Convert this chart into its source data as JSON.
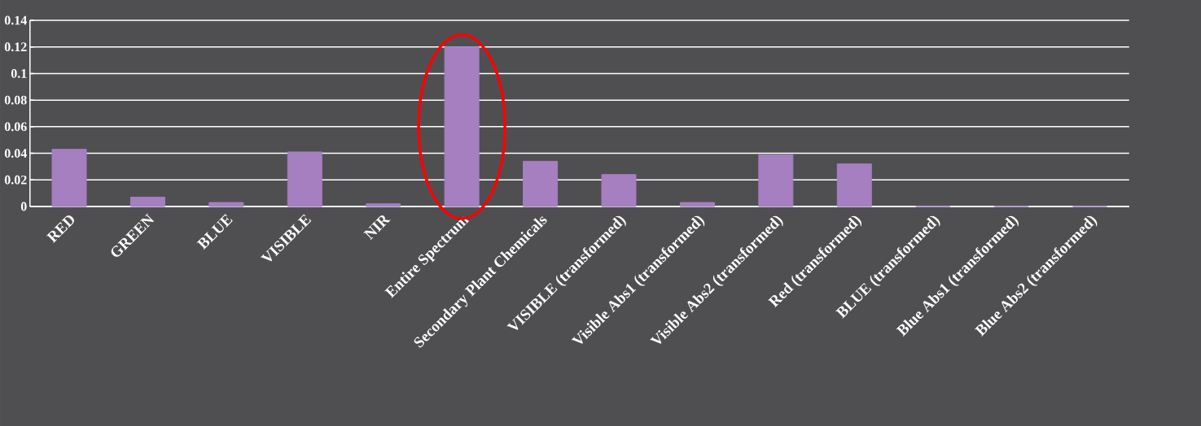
{
  "chart_data": {
    "type": "bar",
    "categories": [
      "RED",
      "GREEN",
      "BLUE",
      "VISIBLE",
      "NIR",
      "Entire Spectrum",
      "Secondary Plant Chemicals",
      "VISIBLE (transformed)",
      "Visible Abs1 (transformed)",
      "Visible Abs2 (transformed)",
      "Red (transformed)",
      "BLUE (transformed)",
      "Blue Abs1 (transformed)",
      "Blue Abs2 (transformed)"
    ],
    "values": [
      0.043,
      0.007,
      0.003,
      0.041,
      0.002,
      0.12,
      0.034,
      0.024,
      0.003,
      0.039,
      0.032,
      0,
      0,
      0
    ],
    "color": "#a57fc0",
    "ylim": [
      0,
      0.14
    ],
    "yticks": [
      0,
      0.02,
      0.04,
      0.06,
      0.08,
      0.1,
      0.12,
      0.14
    ],
    "grid": "y"
  }
}
